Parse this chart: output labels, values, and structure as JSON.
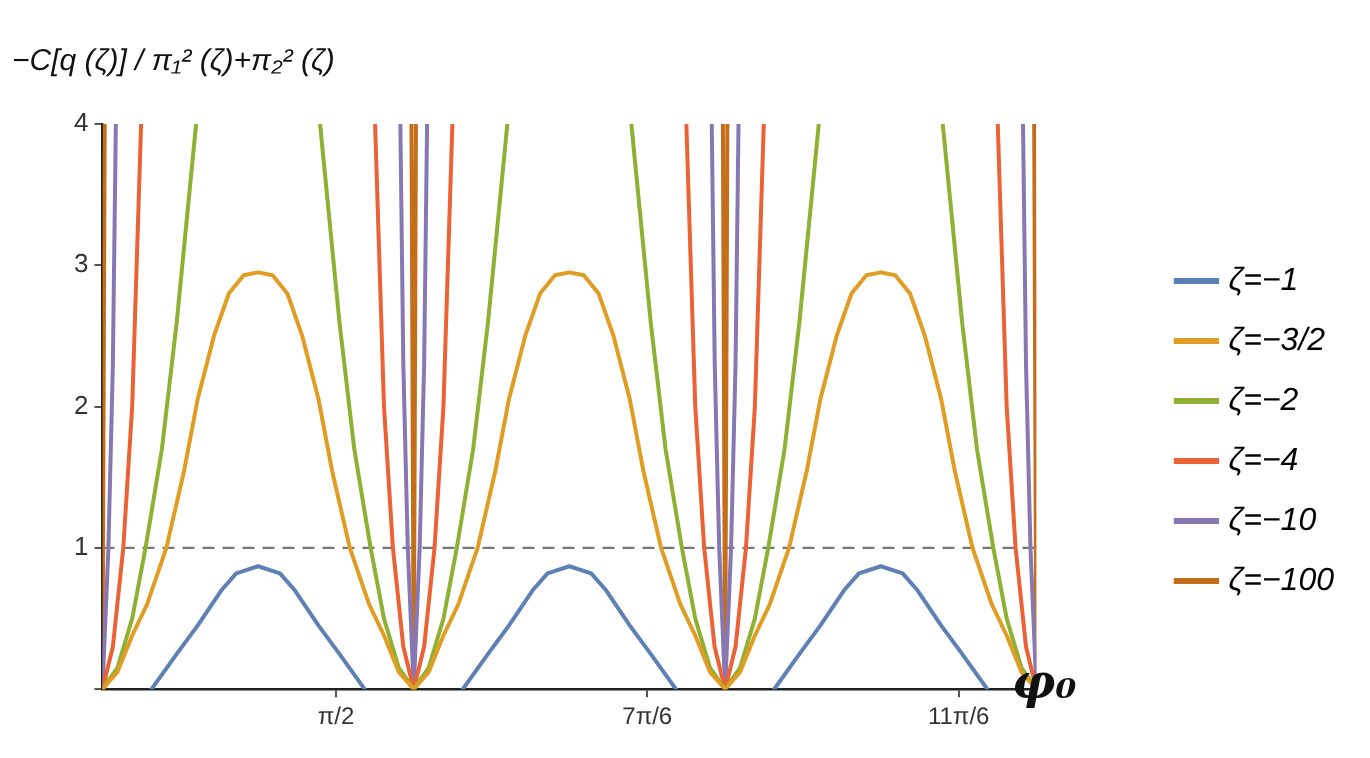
{
  "chart_data": {
    "type": "line",
    "ylabel": "−C[q (ζ)] / π₁² (ζ)+π₂² (ζ)",
    "xlabel": "φ₀",
    "xlim": [
      0,
      6.283
    ],
    "ylim": [
      0,
      4
    ],
    "xticks": [
      {
        "value": 1.571,
        "label": "π/2"
      },
      {
        "value": 3.665,
        "label": "7π/6"
      },
      {
        "value": 5.76,
        "label": "11π/6"
      }
    ],
    "yticks": [
      {
        "value": 0,
        "label": null
      },
      1,
      2,
      3,
      4
    ],
    "grid": false,
    "legend": "right",
    "marker": "none",
    "line_style": "solid",
    "ref_lines": [
      {
        "axis": "y",
        "value": 1,
        "color": "#777777",
        "line_style": "dashed"
      }
    ],
    "series": [
      {
        "name": "ζ=−1",
        "color": "#5e81b5",
        "x": [
          0.33,
          0.5,
          0.64,
          0.8,
          0.9,
          1.047,
          1.194,
          1.294,
          1.454,
          1.594,
          1.764,
          1.93,
          2.424,
          2.594,
          2.734,
          2.894,
          2.994,
          3.141,
          3.288,
          3.388,
          3.548,
          3.688,
          3.858,
          4.0,
          4.519,
          4.689,
          4.829,
          4.989,
          5.089,
          5.236,
          5.383,
          5.483,
          5.643,
          5.783,
          5.953
        ],
        "values": [
          0,
          0.25,
          0.45,
          0.7,
          0.82,
          0.87,
          0.82,
          0.7,
          0.45,
          0.25,
          0,
          null,
          0,
          0.25,
          0.45,
          0.7,
          0.82,
          0.87,
          0.82,
          0.7,
          0.45,
          0.25,
          0,
          null,
          0,
          0.25,
          0.45,
          0.7,
          0.82,
          0.87,
          0.82,
          0.7,
          0.45,
          0.25,
          0
        ]
      },
      {
        "name": "ζ=−3/2",
        "color": "#e19c24",
        "x": [
          0,
          0.1,
          0.2,
          0.3,
          0.43,
          0.55,
          0.64,
          0.75,
          0.85,
          0.95,
          1.047,
          1.144,
          1.244,
          1.344,
          1.454,
          1.544,
          1.664,
          1.794,
          1.894,
          1.994,
          2.094,
          2.194,
          2.294,
          2.394,
          2.524,
          2.644,
          2.734,
          2.844,
          2.944,
          3.044,
          3.141,
          3.238,
          3.338,
          3.438,
          3.548,
          3.638,
          3.758,
          3.888,
          3.988,
          4.088,
          4.189,
          4.289,
          4.389,
          4.489,
          4.619,
          4.739,
          4.829,
          4.939,
          5.039,
          5.139,
          5.236,
          5.333,
          5.433,
          5.533,
          5.643,
          5.733,
          5.853,
          5.983,
          6.083,
          6.183,
          6.283
        ],
        "values": [
          0,
          0.12,
          0.38,
          0.6,
          1.0,
          1.55,
          2.05,
          2.5,
          2.8,
          2.93,
          2.95,
          2.93,
          2.8,
          2.5,
          2.05,
          1.55,
          1.0,
          0.6,
          0.38,
          0.12,
          0,
          0.12,
          0.38,
          0.6,
          1.0,
          1.55,
          2.05,
          2.5,
          2.8,
          2.93,
          2.95,
          2.93,
          2.8,
          2.5,
          2.05,
          1.55,
          1.0,
          0.6,
          0.38,
          0.12,
          0,
          0.12,
          0.38,
          0.6,
          1.0,
          1.55,
          2.05,
          2.5,
          2.8,
          2.93,
          2.95,
          2.93,
          2.8,
          2.5,
          2.05,
          1.55,
          1.0,
          0.6,
          0.38,
          0.12,
          0
        ]
      },
      {
        "name": "ζ=−2",
        "color": "#8fb032",
        "x": [
          0,
          0.1,
          0.2,
          0.29,
          0.4,
          0.5,
          0.63,
          1.047,
          1.464,
          1.594,
          1.694,
          1.804,
          1.894,
          1.994,
          2.094,
          2.194,
          2.294,
          2.384,
          2.494,
          2.594,
          2.724,
          3.141,
          3.558,
          3.688,
          3.788,
          3.898,
          3.988,
          4.088,
          4.189,
          4.289,
          4.389,
          4.479,
          4.589,
          4.689,
          4.819,
          5.236,
          5.653,
          5.783,
          5.883,
          5.993,
          6.083,
          6.183,
          6.283
        ],
        "values": [
          0,
          0.15,
          0.5,
          1,
          1.7,
          2.6,
          4,
          null,
          4,
          2.6,
          1.7,
          1,
          0.5,
          0.15,
          0,
          0.15,
          0.5,
          1,
          1.7,
          2.6,
          4,
          null,
          4,
          2.6,
          1.7,
          1,
          0.5,
          0.15,
          0,
          0.15,
          0.5,
          1,
          1.7,
          2.6,
          4,
          null,
          4,
          2.6,
          1.7,
          1,
          0.5,
          0.15,
          0
        ]
      },
      {
        "name": "ζ=−4",
        "color": "#eb6235",
        "x": [
          0,
          0.07,
          0.14,
          0.2,
          0.26,
          1.047,
          1.834,
          1.894,
          1.954,
          2.024,
          2.094,
          2.164,
          2.234,
          2.294,
          2.354,
          3.141,
          3.928,
          3.988,
          4.048,
          4.118,
          4.189,
          4.259,
          4.329,
          4.389,
          4.449,
          5.236,
          6.023,
          6.083,
          6.143,
          6.213,
          6.283
        ],
        "values": [
          0,
          0.3,
          1,
          2,
          4,
          null,
          4,
          2,
          1,
          0.3,
          0,
          0.3,
          1,
          2,
          4,
          null,
          4,
          2,
          1,
          0.3,
          0,
          0.3,
          1,
          2,
          4,
          null,
          4,
          2,
          1,
          0.3,
          0
        ]
      },
      {
        "name": "ζ=−10",
        "color": "#8778b3",
        "x": [
          0,
          0.04,
          0.07,
          0.09,
          1.047,
          2.004,
          2.024,
          2.054,
          2.094,
          2.134,
          2.164,
          2.184,
          3.141,
          4.099,
          4.119,
          4.149,
          4.189,
          4.229,
          4.259,
          4.279,
          5.236,
          6.193,
          6.213,
          6.243,
          6.283
        ],
        "values": [
          0,
          1,
          2.3,
          4,
          null,
          4,
          2.3,
          1,
          0,
          1,
          2.3,
          4,
          null,
          4,
          2.3,
          1,
          0,
          1,
          2.3,
          4,
          null,
          4,
          2.3,
          1,
          0
        ]
      },
      {
        "name": "ζ=−100",
        "color": "#c56e1a",
        "x": [
          0,
          0.015,
          1.047,
          2.079,
          2.094,
          2.109,
          3.141,
          4.174,
          4.189,
          4.204,
          5.236,
          6.268,
          6.283
        ],
        "values": [
          0,
          4,
          null,
          4,
          0,
          4,
          null,
          4,
          0,
          4,
          null,
          4,
          0
        ]
      }
    ]
  }
}
